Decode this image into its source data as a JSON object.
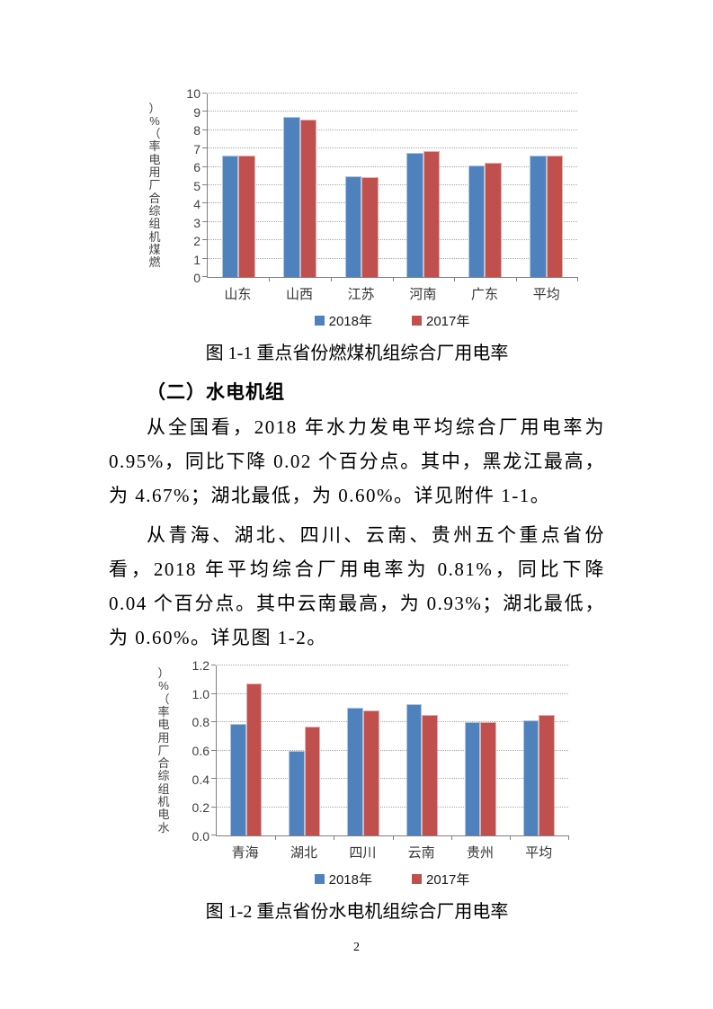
{
  "page": {
    "number": "2"
  },
  "section_heading": "（二）水电机组",
  "paragraphs": {
    "p1": "从全国看，2018 年水力发电平均综合厂用电率为 0.95%，同比下降 0.02 个百分点。其中，黑龙江最高，为 4.67%；湖北最低，为 0.60%。详见附件 1-1。",
    "p2": "从青海、湖北、四川、云南、贵州五个重点省份看，2018 年平均综合厂用电率为 0.81%，同比下降 0.04 个百分点。其中云南最高，为 0.93%；湖北最低，为 0.60%。详见图 1-2。"
  },
  "captions": {
    "fig1": "图 1-1 重点省份燃煤机组综合厂用电率",
    "fig2": "图 1-2 重点省份水电机组综合厂用电率"
  },
  "colors": {
    "series_2018": "#4F81BD",
    "series_2017": "#C0504D"
  },
  "chart_data": [
    {
      "type": "bar",
      "title": "",
      "ylabel": "燃煤机组综合厂用电率（%）",
      "xlabel": "",
      "categories": [
        "山东",
        "山西",
        "江苏",
        "河南",
        "广东",
        "平均"
      ],
      "series": [
        {
          "key": "2018",
          "name": "2018年",
          "color": "#4F81BD",
          "values": [
            6.6,
            8.75,
            5.5,
            6.75,
            6.1,
            6.62
          ]
        },
        {
          "key": "2017",
          "name": "2017年",
          "color": "#C0504D",
          "values": [
            6.6,
            8.6,
            5.45,
            6.85,
            6.25,
            6.6
          ]
        }
      ],
      "ylim": [
        0,
        10
      ],
      "yticks": [
        "0",
        "1",
        "2",
        "3",
        "4",
        "5",
        "6",
        "7",
        "8",
        "9",
        "10"
      ],
      "grid": true,
      "legend_position": "bottom"
    },
    {
      "type": "bar",
      "title": "",
      "ylabel": "水电机组综合厂用电率（%）",
      "xlabel": "",
      "categories": [
        "青海",
        "湖北",
        "四川",
        "云南",
        "贵州",
        "平均"
      ],
      "series": [
        {
          "key": "2018",
          "name": "2018年",
          "color": "#4F81BD",
          "values": [
            0.79,
            0.6,
            0.9,
            0.93,
            0.8,
            0.81
          ]
        },
        {
          "key": "2017",
          "name": "2017年",
          "color": "#C0504D",
          "values": [
            1.07,
            0.77,
            0.88,
            0.85,
            0.8,
            0.85
          ]
        }
      ],
      "ylim": [
        0,
        1.2
      ],
      "yticks": [
        "0.0",
        "0.2",
        "0.4",
        "0.6",
        "0.8",
        "1.0",
        "1.2"
      ],
      "grid": true,
      "legend_position": "bottom"
    }
  ]
}
